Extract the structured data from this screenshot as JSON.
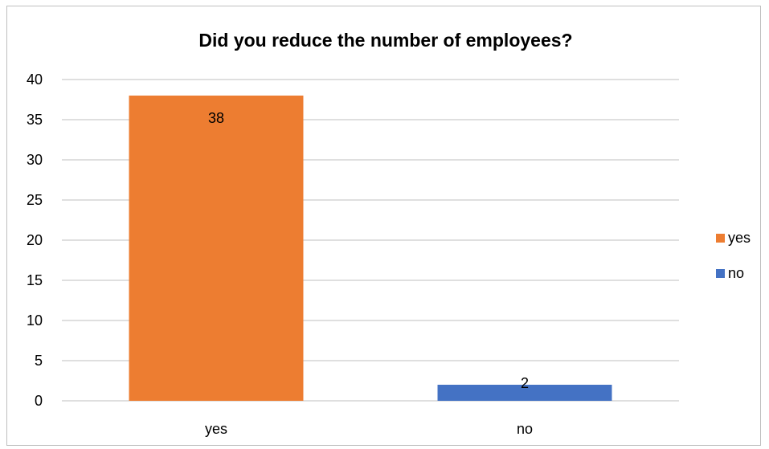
{
  "chart_data": {
    "type": "bar",
    "title": "Did you reduce the number of employees?",
    "categories": [
      "yes",
      "no"
    ],
    "values": [
      38,
      2
    ],
    "data_labels": [
      "38",
      "2"
    ],
    "colors": [
      "#ED7D31",
      "#4472C4"
    ],
    "ylim": [
      0,
      40
    ],
    "yticks": [
      0,
      5,
      10,
      15,
      20,
      25,
      30,
      35,
      40
    ],
    "ytick_labels": [
      "0",
      "5",
      "10",
      "15",
      "20",
      "25",
      "30",
      "35",
      "40"
    ],
    "grid": true,
    "legend": {
      "position": "right",
      "entries": [
        {
          "label": "yes",
          "color": "#ED7D31"
        },
        {
          "label": "no",
          "color": "#4472C4"
        }
      ]
    }
  }
}
